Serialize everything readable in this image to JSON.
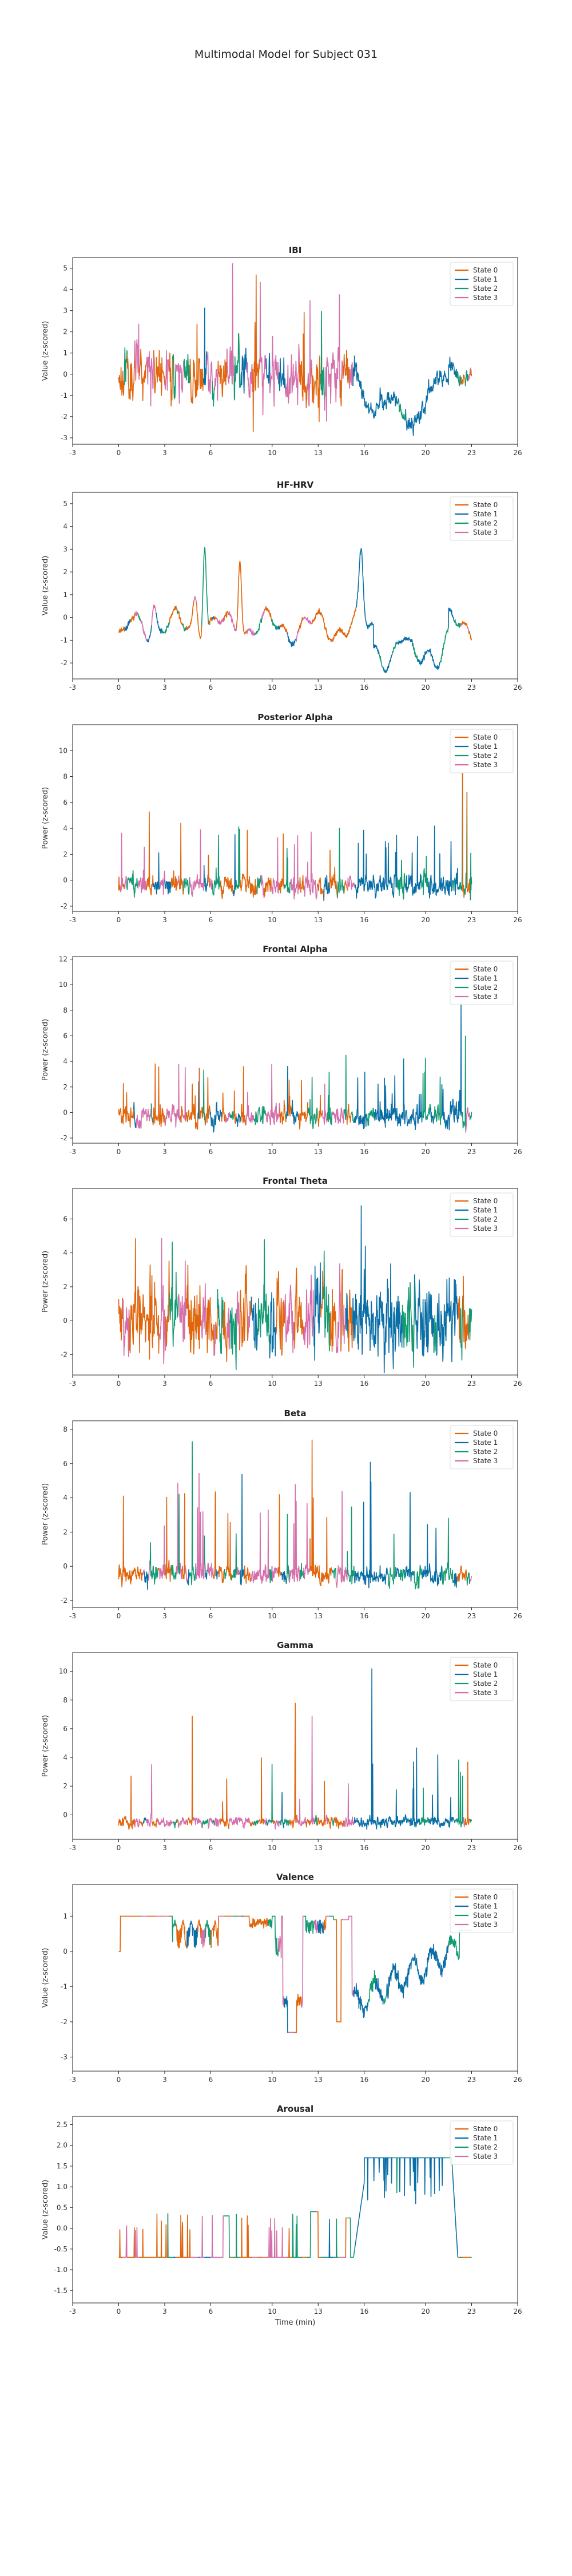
{
  "figure": {
    "title": "Multimodal Model for Subject 031",
    "xlabel": "Time (min)"
  },
  "legend": {
    "placement": "top-right",
    "entries": [
      "State 0",
      "State 1",
      "State 2",
      "State 3"
    ]
  },
  "state_colors": [
    "#e0650c",
    "#0a6ea6",
    "#129a72",
    "#d46fab"
  ],
  "chart_data": [
    {
      "type": "line",
      "title": "IBI",
      "ylabel": "Value (z-scored)",
      "xlim": [
        -3,
        26
      ],
      "ylim": [
        -3.3,
        5.5
      ],
      "xticks": [
        -3,
        0,
        3,
        6,
        10,
        13,
        16,
        20,
        23,
        26
      ],
      "yticks": [
        -3,
        -2,
        -1,
        0,
        1,
        2,
        3,
        4,
        5
      ],
      "gen": {
        "kind": "ibi",
        "seed": 11
      }
    },
    {
      "type": "line",
      "title": "HF-HRV",
      "ylabel": "Value (z-scored)",
      "xlim": [
        -3,
        26
      ],
      "ylim": [
        -2.7,
        5.5
      ],
      "xticks": [
        -3,
        0,
        3,
        6,
        10,
        13,
        16,
        20,
        23,
        26
      ],
      "yticks": [
        -2,
        -1,
        0,
        1,
        2,
        3,
        4,
        5
      ],
      "gen": {
        "kind": "hrv",
        "seed": 23
      }
    },
    {
      "type": "line",
      "title": "Posterior Alpha",
      "ylabel": "Power (z-scored)",
      "xlim": [
        -3,
        26
      ],
      "ylim": [
        -2.4,
        12
      ],
      "xticks": [
        -3,
        0,
        3,
        6,
        10,
        13,
        16,
        20,
        23,
        26
      ],
      "yticks": [
        -2,
        0,
        2,
        4,
        6,
        8,
        10
      ],
      "gen": {
        "kind": "alpha",
        "seed": 37
      }
    },
    {
      "type": "line",
      "title": "Frontal Alpha",
      "ylabel": "Power (z-scored)",
      "xlim": [
        -3,
        26
      ],
      "ylim": [
        -2.4,
        12.2
      ],
      "xticks": [
        -3,
        0,
        3,
        6,
        10,
        13,
        16,
        20,
        23,
        26
      ],
      "yticks": [
        -2,
        0,
        2,
        4,
        6,
        8,
        10,
        12
      ],
      "gen": {
        "kind": "falpha",
        "seed": 41
      }
    },
    {
      "type": "line",
      "title": "Frontal Theta",
      "ylabel": "Power (z-scored)",
      "xlim": [
        -3,
        26
      ],
      "ylim": [
        -3.2,
        7.8
      ],
      "xticks": [
        -3,
        0,
        3,
        6,
        10,
        13,
        16,
        20,
        23,
        26
      ],
      "yticks": [
        -2,
        0,
        2,
        4,
        6
      ],
      "gen": {
        "kind": "theta",
        "seed": 53
      }
    },
    {
      "type": "line",
      "title": "Beta",
      "ylabel": "Power (z-scored)",
      "xlim": [
        -3,
        26
      ],
      "ylim": [
        -2.4,
        8.5
      ],
      "xticks": [
        -3,
        0,
        3,
        6,
        10,
        13,
        16,
        20,
        23,
        26
      ],
      "yticks": [
        -2,
        0,
        2,
        4,
        6,
        8
      ],
      "gen": {
        "kind": "beta",
        "seed": 67
      }
    },
    {
      "type": "line",
      "title": "Gamma",
      "ylabel": "Power (z-scored)",
      "xlim": [
        -3,
        26
      ],
      "ylim": [
        -1.7,
        11.3
      ],
      "xticks": [
        -3,
        0,
        3,
        6,
        10,
        13,
        16,
        20,
        23,
        26
      ],
      "yticks": [
        0,
        2,
        4,
        6,
        8,
        10
      ],
      "gen": {
        "kind": "gamma",
        "seed": 79
      }
    },
    {
      "type": "line",
      "title": "Valence",
      "ylabel": "Value (z-scored)",
      "xlim": [
        -3,
        26
      ],
      "ylim": [
        -3.4,
        1.9
      ],
      "xticks": [
        -3,
        0,
        3,
        6,
        10,
        13,
        16,
        20,
        23,
        26
      ],
      "yticks": [
        -3,
        -2,
        -1,
        0,
        1
      ],
      "gen": {
        "kind": "valence",
        "seed": 83
      }
    },
    {
      "type": "line",
      "title": "Arousal",
      "ylabel": "Value (z-scored)",
      "xlim": [
        -3,
        26
      ],
      "ylim": [
        -1.8,
        2.7
      ],
      "xticks": [
        -3,
        0,
        3,
        6,
        10,
        13,
        16,
        20,
        23,
        26
      ],
      "yticks": [
        -1.5,
        -1.0,
        -0.5,
        0.0,
        0.5,
        1.0,
        1.5,
        2.0,
        2.5
      ],
      "ytick_fmt": 1,
      "gen": {
        "kind": "arousal",
        "seed": 97
      }
    }
  ]
}
